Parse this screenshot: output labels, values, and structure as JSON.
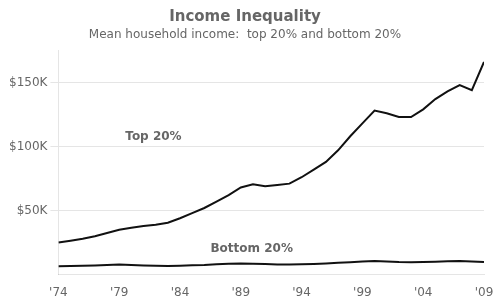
{
  "chart_data": {
    "type": "line",
    "title": "Income Inequality",
    "subtitle": "Mean household income:  top 20% and bottom 20%",
    "x": [
      1974,
      1975,
      1976,
      1977,
      1978,
      1979,
      1980,
      1981,
      1982,
      1983,
      1984,
      1985,
      1986,
      1987,
      1988,
      1989,
      1990,
      1991,
      1992,
      1993,
      1994,
      1995,
      1996,
      1997,
      1998,
      1999,
      2000,
      2001,
      2002,
      2003,
      2004,
      2005,
      2006,
      2007,
      2008,
      2009
    ],
    "series": [
      {
        "color": "#111111",
        "values": [
          25000,
          26500,
          28000,
          30000,
          32500,
          35000,
          36500,
          38000,
          39000,
          40500,
          44000,
          48000,
          52000,
          57000,
          62000,
          68000,
          70500,
          69000,
          70000,
          71000,
          76000,
          82000,
          88000,
          97000,
          108000,
          118000,
          128000,
          126000,
          123000,
          123000,
          129000,
          137000,
          143000,
          148000,
          144000,
          166000
        ]
      },
      {
        "color": "#111111",
        "values": [
          6500,
          6700,
          7000,
          7200,
          7500,
          7800,
          7500,
          7200,
          6900,
          6700,
          7000,
          7300,
          7500,
          8000,
          8500,
          8700,
          8500,
          8200,
          7900,
          7800,
          8000,
          8300,
          8700,
          9200,
          9700,
          10200,
          10700,
          10300,
          9800,
          9600,
          9900,
          10100,
          10400,
          10700,
          10300,
          9800
        ]
      }
    ],
    "xlim": [
      1974,
      2009
    ],
    "xticks": [
      {
        "value": 1974,
        "label": "'74"
      },
      {
        "value": 1979,
        "label": "'79"
      },
      {
        "value": 1984,
        "label": "'84"
      },
      {
        "value": 1989,
        "label": "'89"
      },
      {
        "value": 1994,
        "label": "'94"
      },
      {
        "value": 1999,
        "label": "'99"
      },
      {
        "value": 2004,
        "label": "'04"
      },
      {
        "value": 2009,
        "label": "'09"
      }
    ],
    "ylim": [
      0,
      175000
    ],
    "yticks": [
      {
        "value": 50000,
        "label": "$50K"
      },
      {
        "value": 100000,
        "label": "$100K"
      },
      {
        "value": 150000,
        "label": "$150K"
      }
    ],
    "grid": "y",
    "annotations": [
      {
        "text": "Top 20%",
        "x": 1979.5,
        "y": 105000
      },
      {
        "text": "Bottom 20%",
        "x": 1986.5,
        "y": 18000
      }
    ]
  }
}
